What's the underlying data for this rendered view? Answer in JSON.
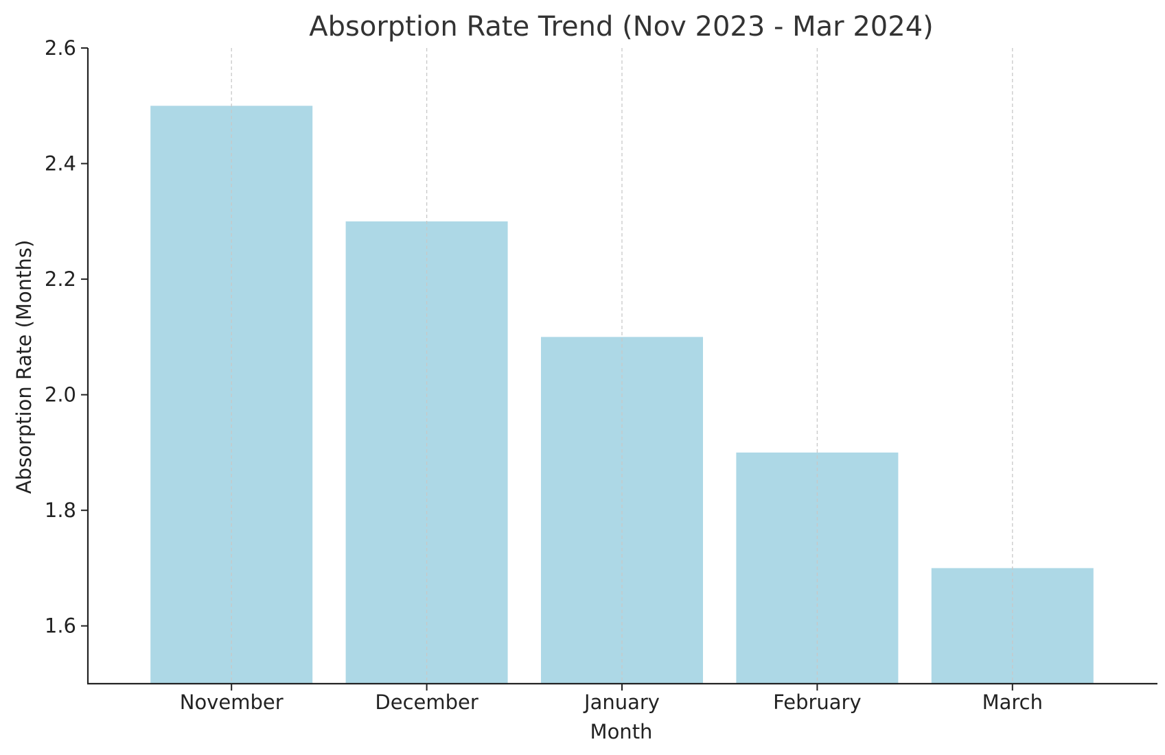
{
  "chart_data": {
    "type": "bar",
    "title": "Absorption Rate Trend (Nov 2023 - Mar 2024)",
    "xlabel": "Month",
    "ylabel": "Absorption Rate (Months)",
    "categories": [
      "November",
      "December",
      "January",
      "February",
      "March"
    ],
    "values": [
      2.5,
      2.3,
      2.1,
      1.9,
      1.7
    ],
    "ylim": [
      1.5,
      2.6
    ],
    "yticks": [
      1.6,
      1.8,
      2.0,
      2.2,
      2.4,
      2.6
    ],
    "ytick_labels": [
      "1.6",
      "1.8",
      "2.0",
      "2.2",
      "2.4",
      "2.6"
    ],
    "grid": "vertical dashed",
    "legend": "none",
    "colors": {
      "bar": "#add8e6",
      "grid": "#c8c8c8",
      "axis": "#222222",
      "title": "#333333"
    }
  }
}
